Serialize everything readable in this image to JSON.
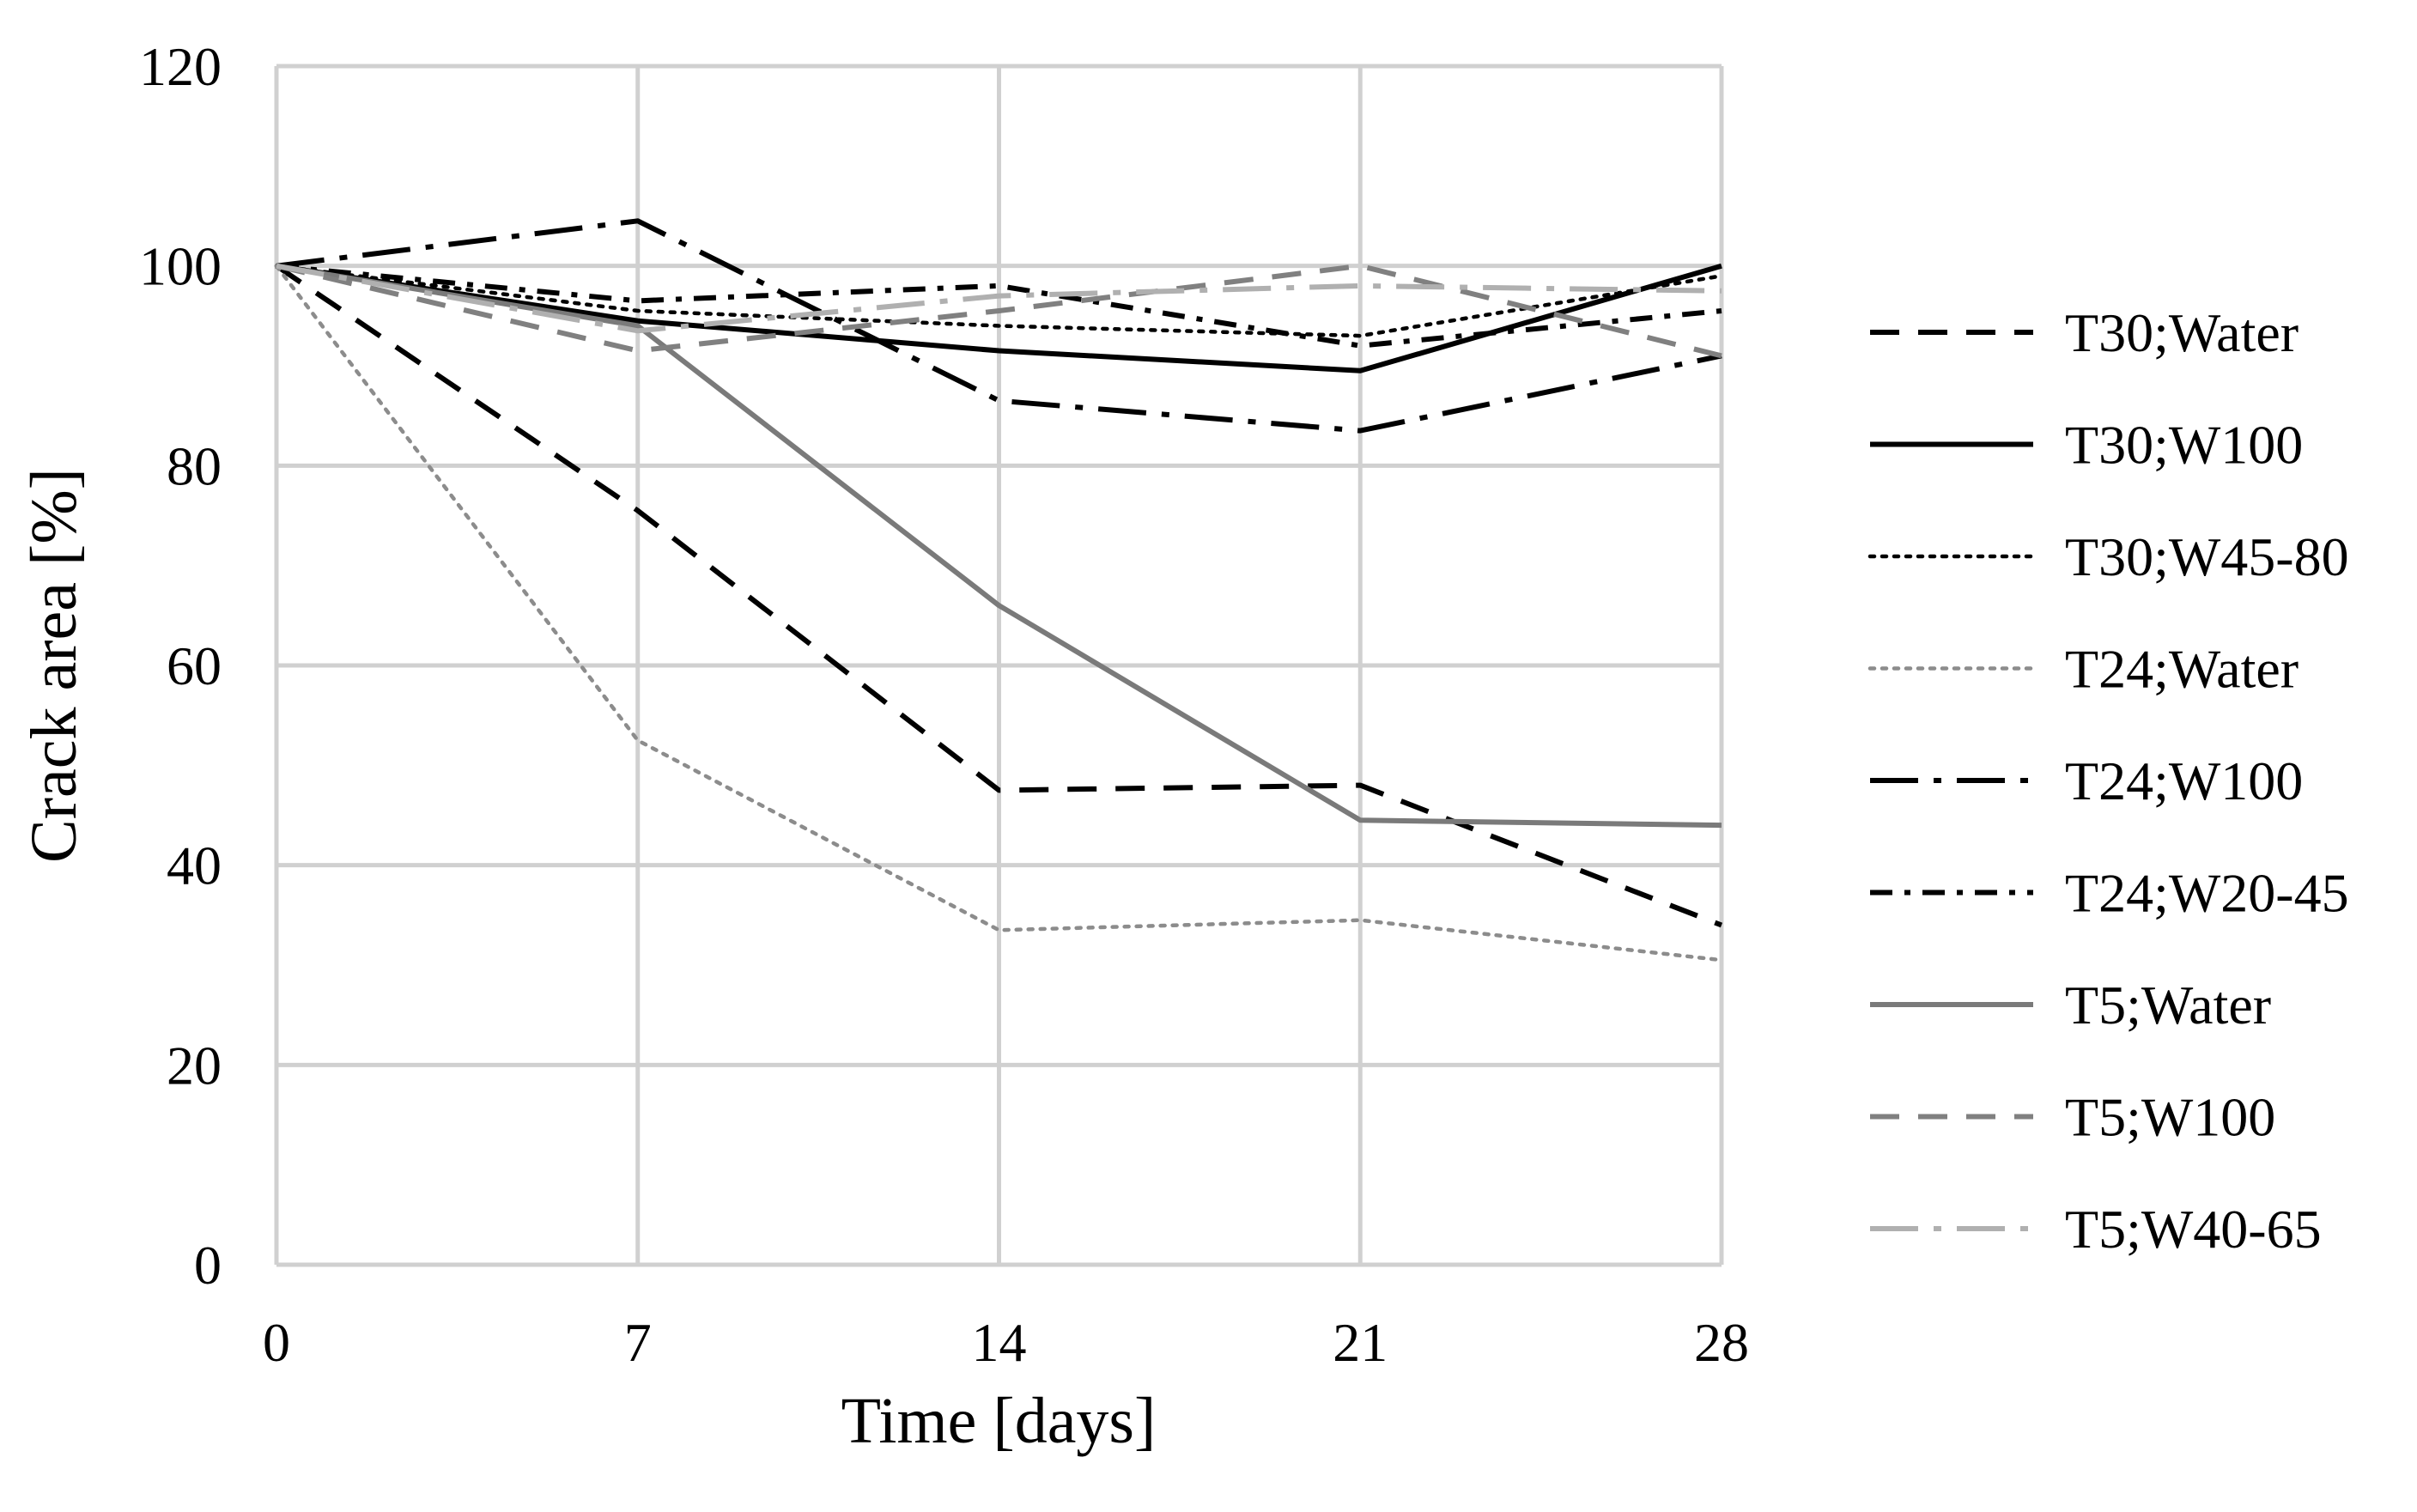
{
  "chart_data": {
    "type": "line",
    "title": "",
    "xlabel": "Time [days]",
    "ylabel": "Crack area [%]",
    "x": [
      0,
      7,
      14,
      21,
      28
    ],
    "x_tick_labels": [
      "0",
      "7",
      "14",
      "21",
      "28"
    ],
    "y_tick_labels": [
      "0",
      "20",
      "40",
      "60",
      "80",
      "100",
      "120"
    ],
    "xlim": [
      0,
      28
    ],
    "ylim": [
      0,
      120
    ],
    "grid": true,
    "legend_position": "right",
    "series": [
      {
        "name": "T30;Water",
        "values": [
          100,
          75.5,
          47.5,
          48,
          34
        ],
        "color": "#000000",
        "style": "dash"
      },
      {
        "name": "T30;W100",
        "values": [
          100,
          94.5,
          91.5,
          89.5,
          100
        ],
        "color": "#000000",
        "style": "solid"
      },
      {
        "name": "T30;W45-80",
        "values": [
          100,
          95.5,
          94,
          93,
          99
        ],
        "color": "#000000",
        "style": "dot"
      },
      {
        "name": "T24;Water",
        "values": [
          100,
          52.5,
          33.5,
          34.5,
          30.5
        ],
        "color": "#8c8c8c",
        "style": "dot"
      },
      {
        "name": "T24;W100",
        "values": [
          100,
          104.5,
          86.5,
          83.5,
          91
        ],
        "color": "#000000",
        "style": "longdashdot"
      },
      {
        "name": "T24;W20-45",
        "values": [
          100,
          96.5,
          98,
          92,
          95.5
        ],
        "color": "#000000",
        "style": "dashdot"
      },
      {
        "name": "T5;Water",
        "values": [
          100,
          94,
          66,
          44.5,
          44
        ],
        "color": "#7a7a7a",
        "style": "solid"
      },
      {
        "name": "T5;W100",
        "values": [
          100,
          91.5,
          95.5,
          100,
          91
        ],
        "color": "#808080",
        "style": "dash"
      },
      {
        "name": "T5;W40-65",
        "values": [
          100,
          93.5,
          97,
          98,
          97.5
        ],
        "color": "#b0b0b0",
        "style": "longdashdot"
      }
    ]
  }
}
